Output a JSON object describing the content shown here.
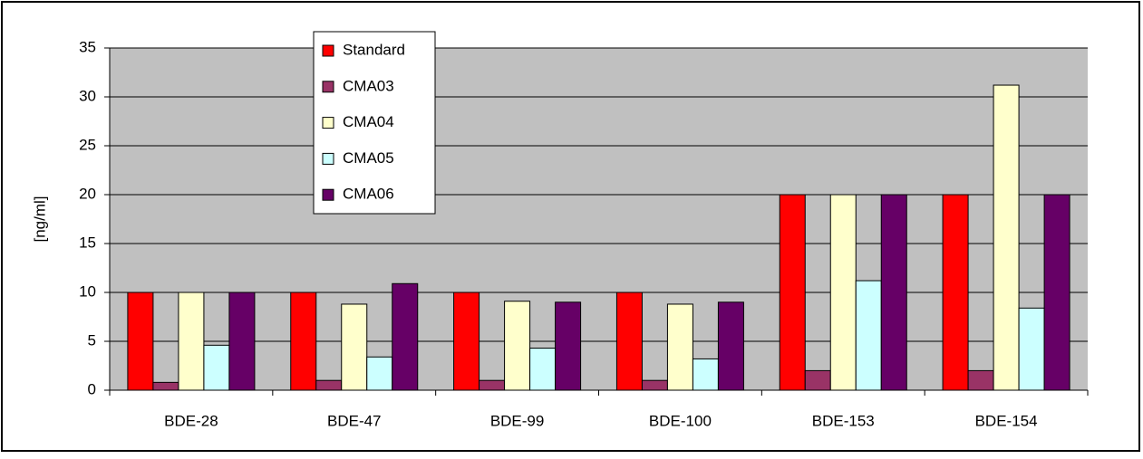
{
  "chart_data": {
    "type": "bar",
    "y_label": "[ng/ml]",
    "categories": [
      "BDE-28",
      "BDE-47",
      "BDE-99",
      "BDE-100",
      "BDE-153",
      "BDE-154"
    ],
    "series": [
      {
        "name": "Standard",
        "color": "#ff0000",
        "values": [
          10,
          10,
          10,
          10,
          20,
          20
        ]
      },
      {
        "name": "CMA03",
        "color": "#993366",
        "values": [
          0.8,
          1.0,
          1.0,
          1.0,
          2.0,
          2.0
        ]
      },
      {
        "name": "CMA04",
        "color": "#ffffcc",
        "values": [
          10,
          8.8,
          9.1,
          8.8,
          20,
          31.2
        ]
      },
      {
        "name": "CMA05",
        "color": "#ccffff",
        "values": [
          4.6,
          3.4,
          4.3,
          3.2,
          11.2,
          8.4
        ]
      },
      {
        "name": "CMA06",
        "color": "#660066",
        "values": [
          10,
          10.9,
          9.0,
          9.0,
          20,
          20
        ]
      }
    ],
    "ylim": [
      0,
      35
    ],
    "yticks": [
      0,
      5,
      10,
      15,
      20,
      25,
      30,
      35
    ],
    "grid": true,
    "legend": "top-left"
  }
}
